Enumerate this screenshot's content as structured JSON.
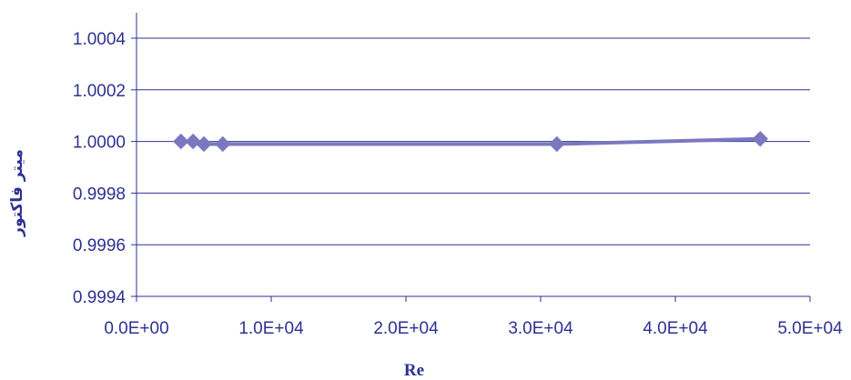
{
  "chart_data": {
    "type": "line",
    "xlabel": "Re",
    "ylabel": "میتر فاکتور",
    "xlim": [
      0,
      50000
    ],
    "ylim": [
      0.9994,
      1.0004
    ],
    "x_tick_values": [
      0,
      10000,
      20000,
      30000,
      40000,
      50000
    ],
    "x_tick_labels": [
      "0.0E+00",
      "1.0E+04",
      "2.0E+04",
      "3.0E+04",
      "4.0E+04",
      "5.0E+04"
    ],
    "y_tick_values": [
      0.9994,
      0.9996,
      0.9998,
      1.0,
      1.0002,
      1.0004
    ],
    "y_tick_labels": [
      "0.9994",
      "0.9996",
      "0.9998",
      "1.0000",
      "1.0002",
      "1.0004"
    ],
    "grid": "horizontal",
    "legend": "none",
    "series": [
      {
        "color": "#7B78C0",
        "marker": "diamond",
        "x": [
          3300,
          4200,
          5000,
          6400,
          31200,
          46300
        ],
        "y": [
          1.0,
          1.0,
          0.99999,
          0.99999,
          0.99999,
          1.00001
        ]
      }
    ],
    "colors": {
      "axis": "#2E3192",
      "grid": "#2E3192",
      "line": "#7B78C0"
    }
  }
}
